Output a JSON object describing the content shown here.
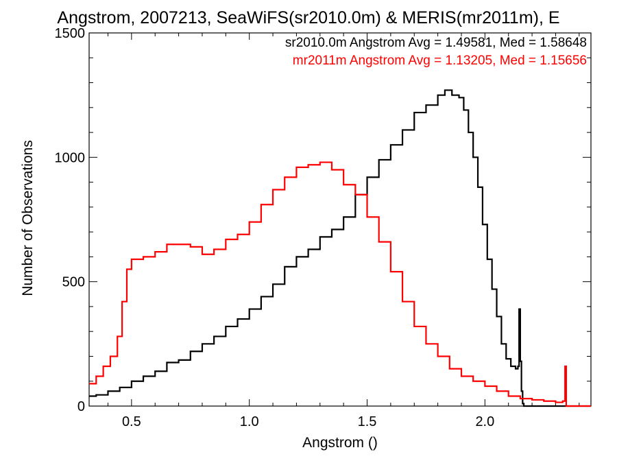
{
  "chart_data": {
    "type": "histogram",
    "title": "Angstrom, 2007213, SeaWiFS(sr2010.0m) & MERIS(mr2011m), E",
    "xlabel": "Angstrom ()",
    "ylabel": "Number of Observations",
    "xlim": [
      0.32,
      2.45
    ],
    "ylim": [
      0,
      1500
    ],
    "xticks": [
      0.5,
      1.0,
      1.5,
      2.0
    ],
    "xtick_labels": [
      "0.5",
      "1.0",
      "1.5",
      "2.0"
    ],
    "yticks": [
      0,
      500,
      1000,
      1500
    ],
    "ytick_labels": [
      "0",
      "500",
      "1000",
      "1500"
    ],
    "grid": false,
    "legend_position": "top-right",
    "legend": [
      "sr2010.0m Angstrom Avg = 1.49581, Med = 1.58648",
      "mr2011m Angstrom Avg = 1.13205, Med = 1.15656"
    ],
    "series": [
      {
        "color": "#000000",
        "x": [
          0.32,
          0.35,
          0.4,
          0.45,
          0.5,
          0.55,
          0.6,
          0.65,
          0.7,
          0.75,
          0.8,
          0.85,
          0.9,
          0.95,
          1.0,
          1.05,
          1.1,
          1.15,
          1.2,
          1.25,
          1.3,
          1.35,
          1.4,
          1.45,
          1.5,
          1.55,
          1.6,
          1.65,
          1.7,
          1.75,
          1.8,
          1.83,
          1.86,
          1.89,
          1.91,
          1.93,
          1.95,
          1.97,
          1.99,
          2.01,
          2.03,
          2.05,
          2.07,
          2.09,
          2.11,
          2.13,
          2.14,
          2.145,
          2.15,
          2.155,
          2.16,
          2.165,
          2.2,
          2.45
        ],
        "y": [
          40,
          45,
          60,
          75,
          100,
          120,
          140,
          175,
          185,
          220,
          250,
          280,
          320,
          350,
          390,
          440,
          490,
          560,
          600,
          630,
          680,
          710,
          760,
          850,
          920,
          990,
          1050,
          1110,
          1180,
          1210,
          1250,
          1270,
          1250,
          1240,
          1190,
          1100,
          1000,
          880,
          730,
          590,
          470,
          360,
          250,
          190,
          160,
          150,
          160,
          390,
          180,
          60,
          10,
          0,
          0,
          0
        ]
      },
      {
        "color": "#ff0000",
        "x": [
          0.32,
          0.35,
          0.38,
          0.41,
          0.44,
          0.46,
          0.48,
          0.5,
          0.55,
          0.6,
          0.65,
          0.7,
          0.75,
          0.8,
          0.85,
          0.9,
          0.95,
          1.0,
          1.05,
          1.1,
          1.15,
          1.2,
          1.25,
          1.3,
          1.35,
          1.4,
          1.45,
          1.5,
          1.55,
          1.6,
          1.65,
          1.7,
          1.75,
          1.8,
          1.85,
          1.9,
          1.95,
          2.0,
          2.05,
          2.1,
          2.15,
          2.2,
          2.25,
          2.3,
          2.33,
          2.34,
          2.345,
          2.35,
          2.45
        ],
        "y": [
          90,
          120,
          160,
          200,
          280,
          420,
          550,
          590,
          600,
          620,
          650,
          650,
          640,
          610,
          630,
          670,
          690,
          740,
          810,
          870,
          920,
          960,
          970,
          980,
          950,
          890,
          850,
          760,
          660,
          540,
          420,
          320,
          250,
          200,
          150,
          120,
          100,
          80,
          60,
          40,
          30,
          25,
          20,
          15,
          20,
          160,
          0,
          0,
          0
        ]
      }
    ]
  }
}
